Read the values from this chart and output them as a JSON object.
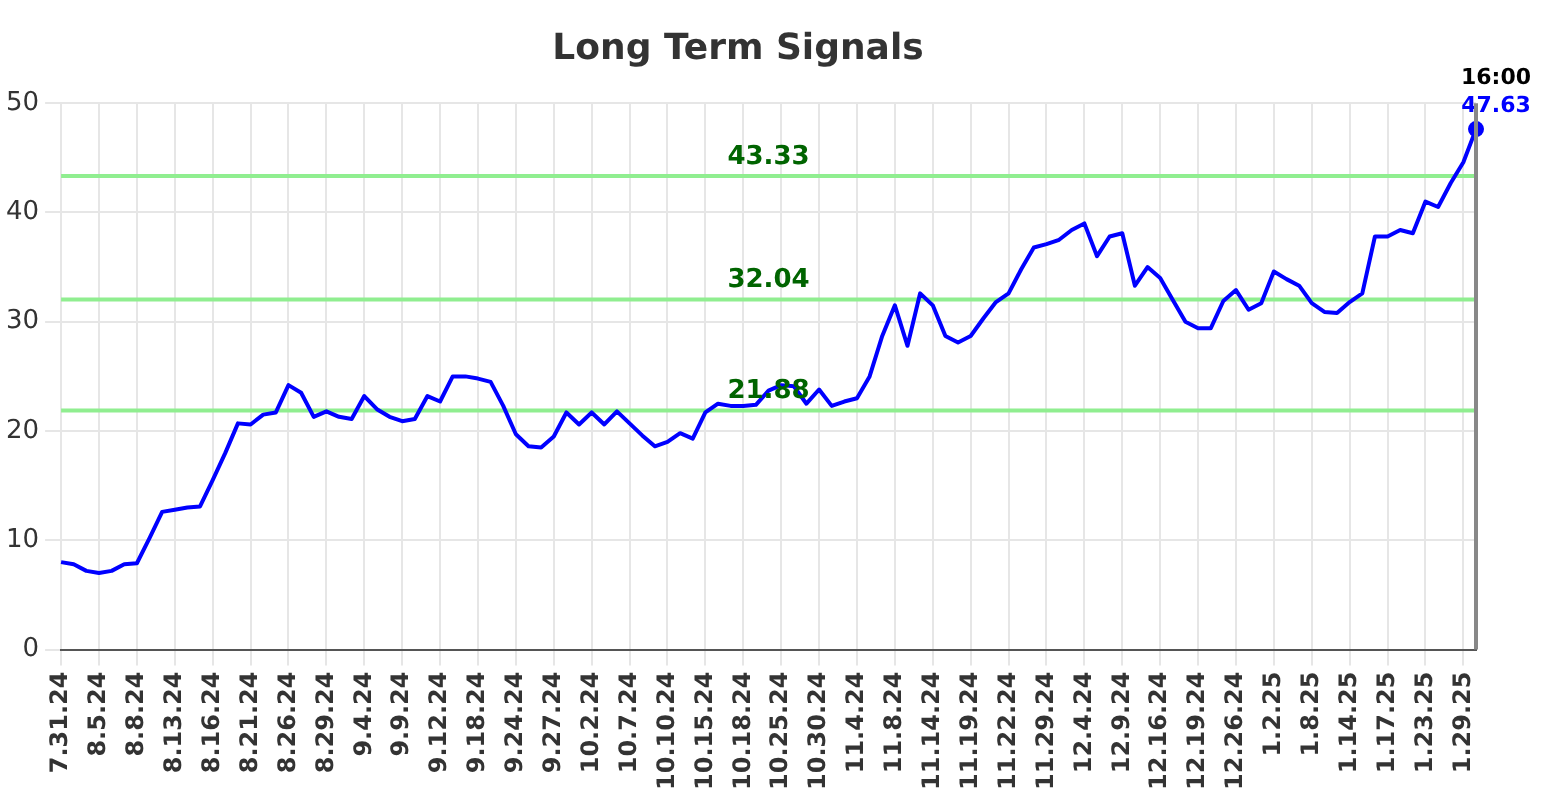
{
  "chart_data": {
    "type": "line",
    "title": "Long Term Signals",
    "categories": [
      "7.31.24",
      null,
      null,
      "8.5.24",
      null,
      null,
      "8.8.24",
      null,
      null,
      "8.13.24",
      null,
      null,
      "8.16.24",
      null,
      null,
      "8.21.24",
      null,
      null,
      "8.26.24",
      null,
      null,
      "8.29.24",
      null,
      null,
      "9.4.24",
      null,
      null,
      "9.9.24",
      null,
      null,
      "9.12.24",
      null,
      null,
      "9.18.24",
      null,
      null,
      "9.24.24",
      null,
      null,
      "9.27.24",
      null,
      null,
      "10.2.24",
      null,
      null,
      "10.7.24",
      null,
      null,
      "10.10.24",
      null,
      null,
      "10.15.24",
      null,
      null,
      "10.18.24",
      null,
      null,
      "10.25.24",
      null,
      null,
      "10.30.24",
      null,
      null,
      "11.4.24",
      null,
      null,
      "11.8.24",
      null,
      null,
      "11.14.24",
      null,
      null,
      "11.19.24",
      null,
      null,
      "11.22.24",
      null,
      null,
      "11.29.24",
      null,
      null,
      "12.4.24",
      null,
      null,
      "12.9.24",
      null,
      null,
      "12.16.24",
      null,
      null,
      "12.19.24",
      null,
      null,
      "12.26.24",
      null,
      null,
      "1.2.25",
      null,
      null,
      "1.8.25",
      null,
      null,
      "1.14.25",
      null,
      null,
      "1.17.25",
      null,
      null,
      "1.23.25",
      null,
      null,
      "1.29.25",
      null
    ],
    "series": [
      {
        "color": "#0000ff",
        "values": [
          8.0,
          7.8,
          7.2,
          7.0,
          7.2,
          7.8,
          7.9,
          10.2,
          12.6,
          12.8,
          13.0,
          13.1,
          15.5,
          18.0,
          20.7,
          20.6,
          21.5,
          21.7,
          24.2,
          23.5,
          21.3,
          21.8,
          21.3,
          21.1,
          23.2,
          22.0,
          21.3,
          20.9,
          21.1,
          23.2,
          22.7,
          25.0,
          25.0,
          24.8,
          24.5,
          22.3,
          19.7,
          18.6,
          18.5,
          19.5,
          21.7,
          20.6,
          21.7,
          20.6,
          21.8,
          20.7,
          19.6,
          18.6,
          19.0,
          19.8,
          19.3,
          21.7,
          22.5,
          22.3,
          22.3,
          22.4,
          23.7,
          24.2,
          24.1,
          22.5,
          23.8,
          22.3,
          22.7,
          23.0,
          25.0,
          28.7,
          31.5,
          27.8,
          32.6,
          31.5,
          28.7,
          28.1,
          28.7,
          30.3,
          31.8,
          32.6,
          34.8,
          36.8,
          37.1,
          37.5,
          38.4,
          39.0,
          36.0,
          37.8,
          38.1,
          33.3,
          35.0,
          34.0,
          32.0,
          30.0,
          29.4,
          29.4,
          31.9,
          32.9,
          31.1,
          31.7,
          34.6,
          33.9,
          33.3,
          31.7,
          30.9,
          30.8,
          31.8,
          32.6,
          37.8,
          37.8,
          38.4,
          38.1,
          41.0,
          40.5,
          42.7,
          44.6,
          47.63
        ]
      }
    ],
    "ylim": [
      0,
      50
    ],
    "yticks": [
      0,
      10,
      20,
      30,
      40,
      50
    ],
    "grid": true,
    "legend": false,
    "ref_lines": [
      {
        "axis": "y",
        "value": 43.33,
        "label": "43.33",
        "color": "#90ee90"
      },
      {
        "axis": "y",
        "value": 32.04,
        "label": "32.04",
        "color": "#90ee90"
      },
      {
        "axis": "y",
        "value": 21.88,
        "label": "21.88",
        "color": "#90ee90"
      }
    ],
    "annotations": [
      "16:00",
      "47.63"
    ]
  }
}
